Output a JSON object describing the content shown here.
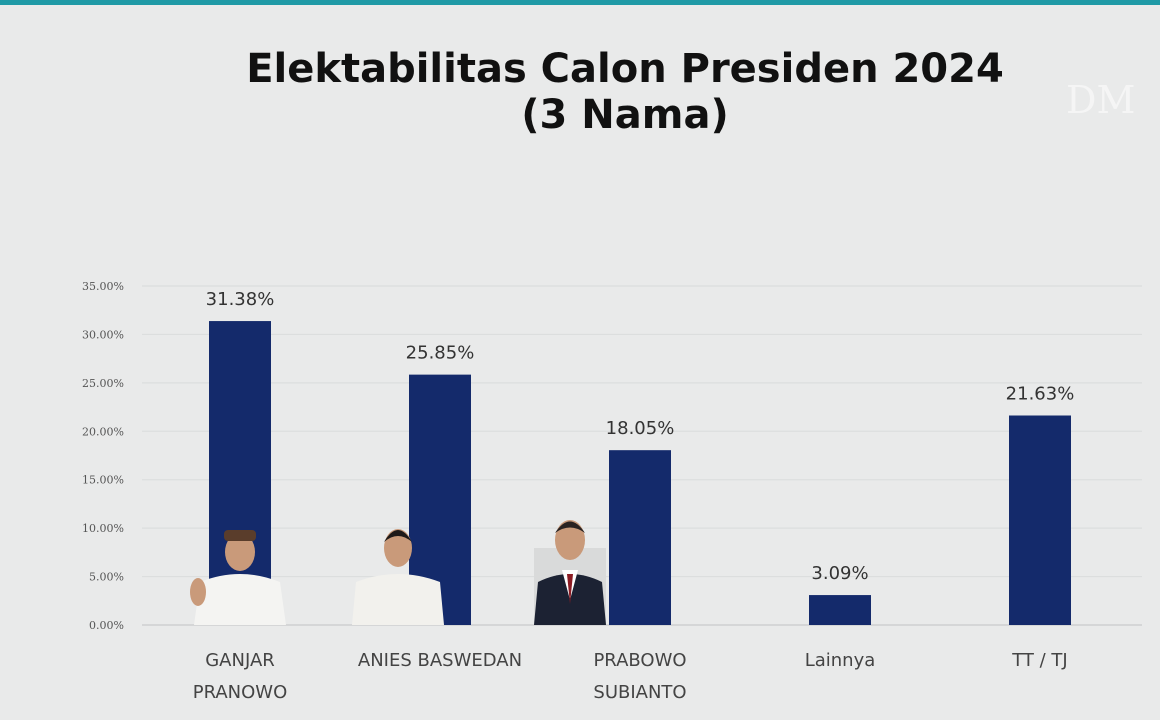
{
  "title": {
    "line1": "Elektabilitas Calon Presiden 2024",
    "line2": "(3 Nama)"
  },
  "watermark_text": "DM",
  "chart_data": {
    "type": "bar",
    "title": "Elektabilitas Calon Presiden 2024 (3 Nama)",
    "xlabel": "",
    "ylabel": "",
    "ylim": [
      0,
      35
    ],
    "yticks": [
      "0.00%",
      "5.00%",
      "10.00%",
      "15.00%",
      "20.00%",
      "25.00%",
      "30.00%",
      "35.00%"
    ],
    "grid": true,
    "legend": "none",
    "bar_color": "#142a6b",
    "categories": [
      [
        "GANJAR",
        "PRANOWO"
      ],
      [
        "ANIES BASWEDAN"
      ],
      [
        "PRABOWO",
        "SUBIANTO"
      ],
      [
        "Lainnya"
      ],
      [
        "TT / TJ"
      ]
    ],
    "values": [
      31.38,
      25.85,
      18.05,
      3.09,
      21.63
    ],
    "data_labels": [
      "31.38%",
      "25.85%",
      "18.05%",
      "3.09%",
      "21.63%"
    ],
    "portraits": [
      "portrait-ganjar",
      "portrait-anies",
      "portrait-prabowo",
      "",
      ""
    ]
  }
}
